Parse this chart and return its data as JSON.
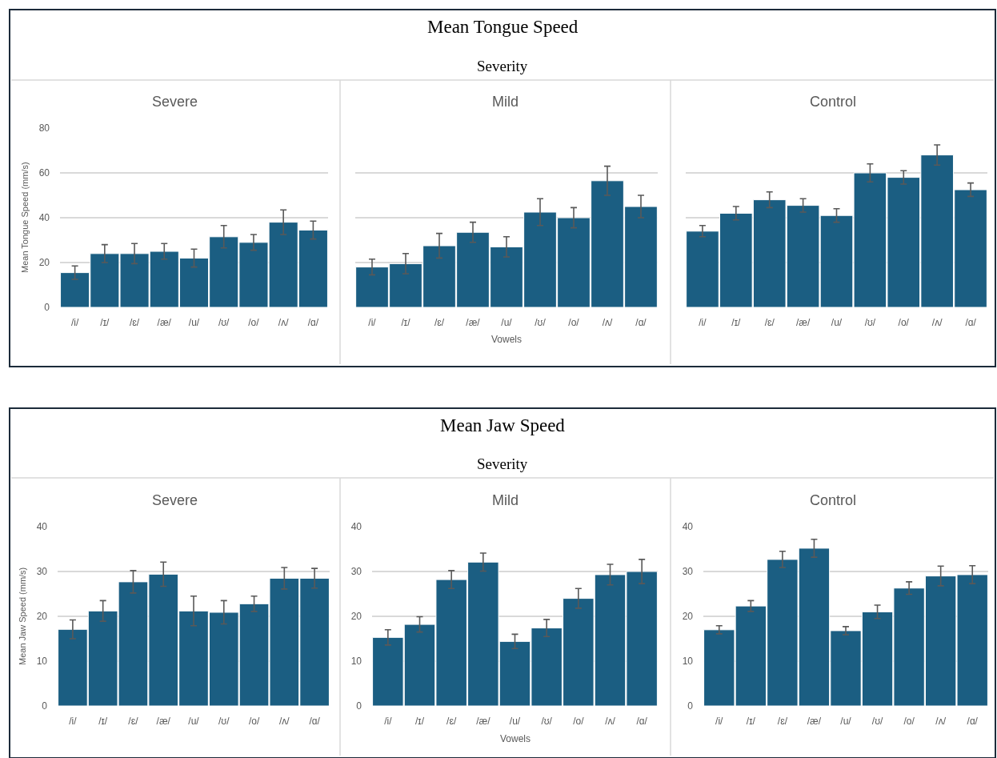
{
  "chart_data": [
    {
      "type": "bar",
      "title": "Severe",
      "annotations": [
        "Mean Tongue Speed",
        "Severity"
      ],
      "ylabel": "Mean Tongue Speed (mm/s)",
      "categories": [
        "/i/",
        "/ɪ/",
        "/ɛ/",
        "/æ/",
        "/u/",
        "/ʊ/",
        "/o/",
        "/ʌ/",
        "/ɑ/"
      ],
      "values": [
        15.5,
        24,
        24,
        25,
        22,
        31.5,
        29,
        38,
        34.5
      ],
      "errors": [
        3,
        4,
        4.5,
        3.5,
        4,
        5,
        3.5,
        5.5,
        4
      ],
      "color": "#1b5e82",
      "ylim": [
        0,
        80
      ],
      "yticks": [
        0,
        20,
        40,
        60,
        80
      ],
      "grid": "y"
    },
    {
      "type": "bar",
      "title": "Mild",
      "xlabel": "Vowels",
      "categories": [
        "/i/",
        "/ɪ/",
        "/ɛ/",
        "/æ/",
        "/u/",
        "/ʊ/",
        "/o/",
        "/ʌ/",
        "/ɑ/"
      ],
      "values": [
        18,
        19.5,
        27.5,
        33.5,
        27,
        42.5,
        40,
        56.5,
        45
      ],
      "errors": [
        3.5,
        4.5,
        5.5,
        4.5,
        4.5,
        6,
        4.5,
        6.5,
        5
      ],
      "color": "#1b5e82",
      "ylim": [
        0,
        80
      ],
      "yticks": [
        0,
        20,
        40,
        60,
        80
      ],
      "grid": "y",
      "tick_labels": "x"
    },
    {
      "type": "bar",
      "title": "Control",
      "categories": [
        "/i/",
        "/ɪ/",
        "/ɛ/",
        "/æ/",
        "/u/",
        "/ʊ/",
        "/o/",
        "/ʌ/",
        "/ɑ/"
      ],
      "values": [
        34,
        42,
        48,
        45.5,
        41,
        60,
        58,
        68,
        52.5
      ],
      "errors": [
        2.5,
        3,
        3.5,
        3,
        3,
        4,
        3,
        4.5,
        3
      ],
      "color": "#1b5e82",
      "ylim": [
        0,
        80
      ],
      "yticks": [
        0,
        20,
        40,
        60,
        80
      ],
      "grid": "y",
      "tick_labels": "x"
    },
    {
      "type": "bar",
      "title": "Severe",
      "annotations": [
        "Mean Jaw Speed",
        "Severity"
      ],
      "ylabel": "Mean Jaw Speed (mm/s)",
      "categories": [
        "/i/",
        "/ɪ/",
        "/ɛ/",
        "/æ/",
        "/u/",
        "/ʊ/",
        "/o/",
        "/ʌ/",
        "/ɑ/"
      ],
      "values": [
        17.1,
        21.2,
        27.7,
        29.4,
        21.2,
        20.9,
        22.8,
        28.5,
        28.5
      ],
      "errors": [
        2.1,
        2.3,
        2.5,
        2.7,
        3.3,
        2.6,
        1.7,
        2.4,
        2.2
      ],
      "color": "#1b5e82",
      "ylim": [
        0,
        40
      ],
      "yticks": [
        0,
        10,
        20,
        30,
        40
      ],
      "grid": "y"
    },
    {
      "type": "bar",
      "title": "Mild",
      "xlabel": "Vowels",
      "categories": [
        "/i/",
        "/ɪ/",
        "/ɛ/",
        "/æ/",
        "/u/",
        "/ʊ/",
        "/o/",
        "/ʌ/",
        "/ɑ/"
      ],
      "values": [
        15.3,
        18.2,
        28.2,
        32.1,
        14.4,
        17.4,
        24,
        29.3,
        30
      ],
      "errors": [
        1.7,
        1.7,
        2,
        2,
        1.6,
        1.9,
        2.2,
        2.3,
        2.7
      ],
      "color": "#1b5e82",
      "ylim": [
        0,
        40
      ],
      "yticks": [
        0,
        10,
        20,
        30,
        40
      ],
      "grid": "y"
    },
    {
      "type": "bar",
      "title": "Control",
      "categories": [
        "/i/",
        "/ɪ/",
        "/ɛ/",
        "/æ/",
        "/u/",
        "/ʊ/",
        "/o/",
        "/ʌ/",
        "/ɑ/"
      ],
      "values": [
        17,
        22.3,
        32.7,
        35.2,
        16.8,
        21,
        26.3,
        29,
        29.3
      ],
      "errors": [
        0.9,
        1.2,
        1.8,
        2,
        0.9,
        1.5,
        1.4,
        2.2,
        2
      ],
      "color": "#1b5e82",
      "ylim": [
        0,
        40
      ],
      "yticks": [
        0,
        10,
        20,
        30,
        40
      ],
      "grid": "y"
    }
  ]
}
